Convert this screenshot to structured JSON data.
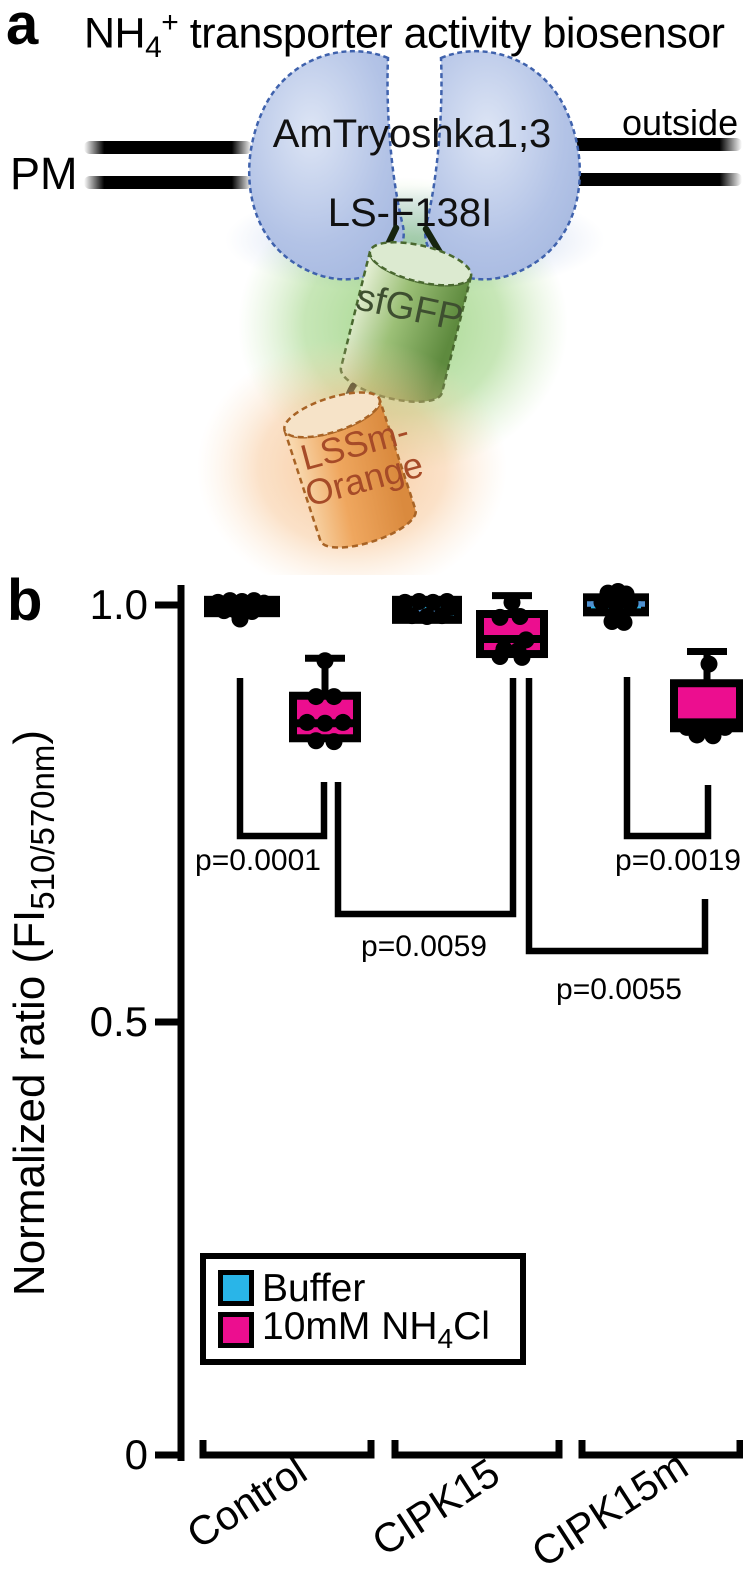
{
  "panel_a": {
    "letter": "a",
    "title_prefix": "NH",
    "title_sub": "4",
    "title_sup": "+",
    "title_rest": " transporter activity biosensor",
    "pm_label": "PM",
    "outside_label": "outside",
    "protein_line1": "AmTryoshka1;3",
    "protein_line2": "LS-F138I",
    "gfp_label": "sfGFP",
    "orange_label_line1": "LSSm-",
    "orange_label_line2": "Orange",
    "colors": {
      "lobe_fill": "#b3c3e6",
      "lobe_stroke": "#3f62ad",
      "gfp_fill": "#8fb96b",
      "gfp_stroke": "#49682f",
      "gfp_text": "#3e4f30",
      "orange_fill": "#eda45c",
      "orange_stroke": "#a86325",
      "orange_text": "#a64b28"
    }
  },
  "panel_b": {
    "letter": "b",
    "ylabel_prefix": "Normalized ratio (FI",
    "ylabel_sub": "510/570nm",
    "ylabel_suffix": ")",
    "ytick_labels": [
      "1.0",
      "0.5",
      "0"
    ],
    "legend": {
      "item1_label": "Buffer",
      "item2_prefix": "10mM NH",
      "item2_sub": "4",
      "item2_suffix": "Cl"
    }
  },
  "chart_data": {
    "type": "box",
    "ylabel": "Normalized ratio (FI 510/570nm)",
    "ylim": [
      0,
      1.05
    ],
    "yticks": [
      1.0,
      0.5,
      0
    ],
    "grid": false,
    "legend_position": "lower-left-inside",
    "categories": [
      "Control",
      "CIPK15",
      "CIPK15m"
    ],
    "legend": [
      {
        "label": "Buffer",
        "color": "#29b5e8"
      },
      {
        "label": "10mM NH4Cl",
        "color": "#ec0e8f"
      }
    ],
    "significance": [
      {
        "label": "p=0.0001",
        "between": [
          "Control:Buffer",
          "Control:10mM NH4Cl"
        ]
      },
      {
        "label": "p=0.0059",
        "between": [
          "Control:10mM NH4Cl",
          "CIPK15:10mM NH4Cl"
        ]
      },
      {
        "label": "p=0.0055",
        "between": [
          "CIPK15:10mM NH4Cl",
          "CIPK15m:10mM NH4Cl"
        ]
      },
      {
        "label": "p=0.0019",
        "between": [
          "CIPK15m:Buffer",
          "CIPK15m:10mM NH4Cl"
        ]
      }
    ],
    "median_blue": "#4f90d0",
    "groups": [
      {
        "label": "Control",
        "boxes": [
          {
            "condition": "Buffer",
            "color": "#29b5e8",
            "median_style": "black",
            "stats": {
              "q1": 0.989,
              "median": 0.998,
              "q3": 1.005
            },
            "points": [
              {
                "dx": -24,
                "v": 1.002
              },
              {
                "dx": -12,
                "v": 1.004
              },
              {
                "dx": 0,
                "v": 1.003
              },
              {
                "dx": 12,
                "v": 1.004
              },
              {
                "dx": 22,
                "v": 1.001
              },
              {
                "dx": -18,
                "v": 0.992
              },
              {
                "dx": -4,
                "v": 0.99
              },
              {
                "dx": 10,
                "v": 0.991
              },
              {
                "dx": -2,
                "v": 0.982
              }
            ]
          },
          {
            "condition": "10mM NH4Cl",
            "color": "#ec0e8f",
            "median_style": "black",
            "stats": {
              "q1": 0.839,
              "median": 0.857,
              "q3": 0.89,
              "max": 0.935
            },
            "points": [
              {
                "dx": -9,
                "v": 0.889
              },
              {
                "dx": 9,
                "v": 0.889
              },
              {
                "dx": -18,
                "v": 0.858
              },
              {
                "dx": 0,
                "v": 0.857
              },
              {
                "dx": 18,
                "v": 0.858
              },
              {
                "dx": -9,
                "v": 0.836
              },
              {
                "dx": 9,
                "v": 0.835
              },
              {
                "dx": 0,
                "v": 0.932
              }
            ]
          }
        ]
      },
      {
        "label": "CIPK15",
        "boxes": [
          {
            "condition": "Buffer",
            "color": "#29b5e8",
            "median_style": "dashed-blue",
            "stats": {
              "q1": 0.981,
              "median": 0.993,
              "q3": 1.005
            },
            "points": [
              {
                "dx": -22,
                "v": 1.002
              },
              {
                "dx": -8,
                "v": 1.003
              },
              {
                "dx": 6,
                "v": 1.002
              },
              {
                "dx": 20,
                "v": 1.003
              },
              {
                "dx": -15,
                "v": 0.986
              },
              {
                "dx": 0,
                "v": 0.985
              },
              {
                "dx": 15,
                "v": 0.986
              },
              {
                "dx": -24,
                "v": 0.995
              },
              {
                "dx": 24,
                "v": 0.996
              }
            ]
          },
          {
            "condition": "10mM NH4Cl",
            "color": "#ec0e8f",
            "median_style": "black",
            "stats": {
              "q1": 0.94,
              "median": 0.958,
              "q3": 0.988,
              "max": 1.01
            },
            "points": [
              {
                "dx": -12,
                "v": 0.984
              },
              {
                "dx": 8,
                "v": 0.985
              },
              {
                "dx": 14,
                "v": 0.957
              },
              {
                "dx": -8,
                "v": 0.946
              },
              {
                "dx": 6,
                "v": 0.944
              },
              {
                "dx": -12,
                "v": 0.937
              },
              {
                "dx": 10,
                "v": 0.936
              },
              {
                "dx": 0,
                "v": 1.002
              }
            ]
          }
        ]
      },
      {
        "label": "CIPK15m",
        "boxes": [
          {
            "condition": "Buffer",
            "color": "#29b5e8",
            "median_style": "solid-blue",
            "stats": {
              "q1": 0.99,
              "median": 1.0,
              "q3": 1.008
            },
            "points": [
              {
                "dx": -8,
                "v": 1.013
              },
              {
                "dx": 2,
                "v": 1.015
              },
              {
                "dx": 10,
                "v": 1.012
              },
              {
                "dx": -14,
                "v": 1.002
              },
              {
                "dx": 0,
                "v": 1.0
              },
              {
                "dx": 14,
                "v": 1.001
              },
              {
                "dx": -4,
                "v": 0.979
              },
              {
                "dx": 8,
                "v": 0.978
              }
            ]
          },
          {
            "condition": "10mM NH4Cl",
            "color": "#ec0e8f",
            "median_style": "black",
            "stats": {
              "q1": 0.851,
              "median": 0.858,
              "q3": 0.905,
              "max": 0.943
            },
            "points": [
              {
                "dx": -20,
                "v": 0.852
              },
              {
                "dx": -7,
                "v": 0.85
              },
              {
                "dx": 6,
                "v": 0.851
              },
              {
                "dx": 18,
                "v": 0.852
              },
              {
                "dx": -10,
                "v": 0.843
              },
              {
                "dx": 6,
                "v": 0.842
              },
              {
                "dx": 2,
                "v": 0.928
              }
            ]
          }
        ]
      }
    ]
  }
}
